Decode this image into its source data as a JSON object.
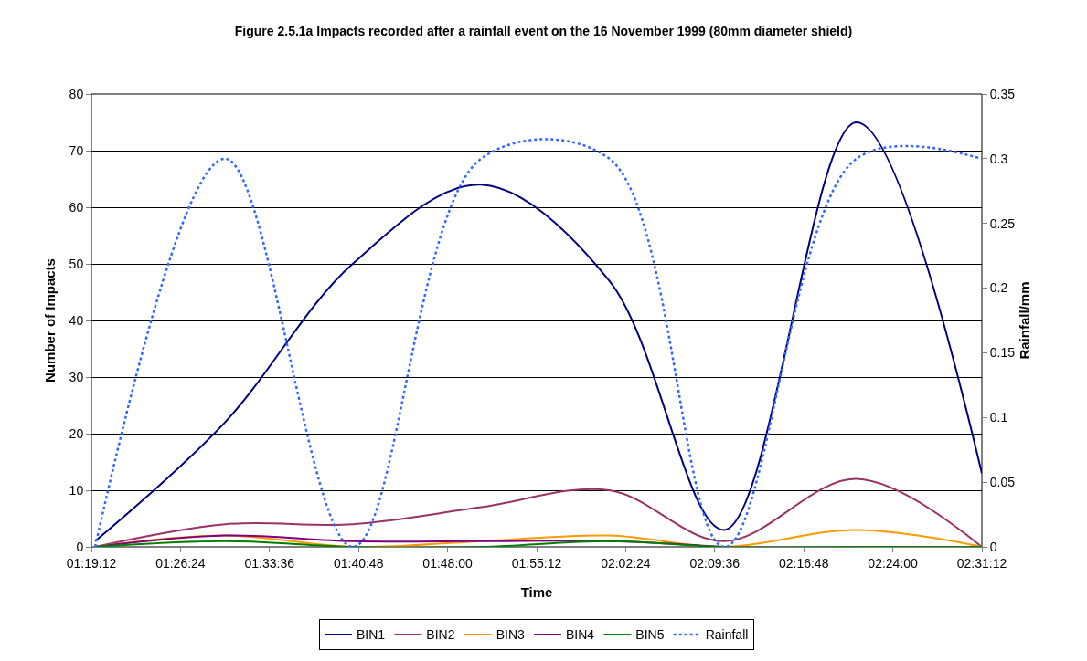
{
  "chart_data": {
    "type": "line",
    "title": "Figure 2.5.1a Impacts recorded after a rainfall event on the 16 November 1999 (80mm diameter shield)",
    "xlabel": "Time",
    "ylabel": "Number of Impacts",
    "y2label": "Rainfall/mm",
    "x": [
      1.325,
      1.5,
      1.672,
      1.845,
      2.018,
      2.173,
      2.351,
      2.52
    ],
    "series": [
      {
        "name": "BIN1",
        "color": "#000080",
        "values": [
          1,
          22,
          50,
          64,
          47,
          3,
          75,
          13
        ]
      },
      {
        "name": "BIN2",
        "color": "#993366",
        "values": [
          0,
          4,
          4,
          7,
          10,
          1,
          12,
          0
        ]
      },
      {
        "name": "BIN3",
        "color": "#ff9900",
        "values": [
          0,
          2,
          0,
          1,
          2,
          0,
          3,
          0
        ]
      },
      {
        "name": "BIN4",
        "color": "#800080",
        "values": [
          0,
          2,
          1,
          1,
          1,
          0,
          null,
          null
        ]
      },
      {
        "name": "BIN5",
        "color": "#008000",
        "values": [
          0,
          1,
          0,
          0,
          1,
          0,
          0,
          0
        ]
      },
      {
        "name": "Rainfall",
        "color": "#3366ff",
        "axis": "y2",
        "line_style": "dotted",
        "values": [
          0,
          0.3,
          0,
          0.3,
          0.3,
          0,
          0.3,
          0.3
        ]
      }
    ],
    "xlim": [
      1.32,
      2.52
    ],
    "xticks": [
      {
        "value": 1.32,
        "label": "01:19:12"
      },
      {
        "value": 1.44,
        "label": "01:26:24"
      },
      {
        "value": 1.56,
        "label": "01:33:36"
      },
      {
        "value": 1.68,
        "label": "01:40:48"
      },
      {
        "value": 1.8,
        "label": "01:48:00"
      },
      {
        "value": 1.92,
        "label": "01:55:12"
      },
      {
        "value": 2.04,
        "label": "02:02:24"
      },
      {
        "value": 2.16,
        "label": "02:09:36"
      },
      {
        "value": 2.28,
        "label": "02:16:48"
      },
      {
        "value": 2.4,
        "label": "02:24:00"
      },
      {
        "value": 2.52,
        "label": "02:31:12"
      }
    ],
    "ylim": [
      0,
      80
    ],
    "yticks": [
      0,
      10,
      20,
      30,
      40,
      50,
      60,
      70,
      80
    ],
    "y2lim": [
      0,
      0.35
    ],
    "y2ticks": [
      0,
      0.05,
      0.1,
      0.15,
      0.2,
      0.25,
      0.3,
      0.35
    ],
    "grid": "y",
    "legend": "bottom",
    "marker": "none",
    "line_style": "solid"
  }
}
